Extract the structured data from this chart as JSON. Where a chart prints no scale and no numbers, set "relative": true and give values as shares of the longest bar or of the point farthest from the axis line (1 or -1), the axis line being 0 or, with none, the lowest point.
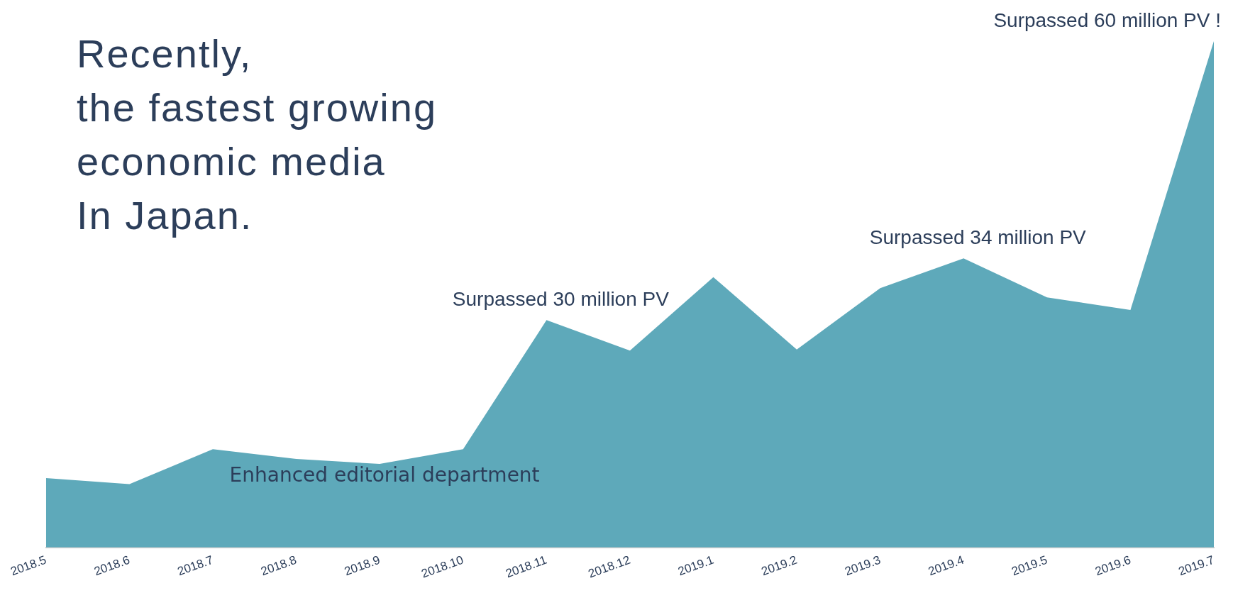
{
  "chart_data": {
    "type": "area",
    "title": "Recently,\nthe fastest growing\neconomic media\nIn Japan.",
    "relative": true,
    "categories": [
      "2018.5",
      "2018.6",
      "2018.7",
      "2018.8",
      "2018.9",
      "2018.10",
      "2018.11",
      "2018.12",
      "2019.1",
      "2019.2",
      "2019.3",
      "2019.4",
      "2019.5",
      "2019.6",
      "2019.7"
    ],
    "values": [
      0.137,
      0.125,
      0.194,
      0.175,
      0.165,
      0.194,
      0.449,
      0.389,
      0.534,
      0.391,
      0.512,
      0.571,
      0.494,
      0.469,
      1
    ],
    "color": "#5ea9ba",
    "grid": false,
    "legend": false,
    "annotations": [
      {
        "text": "Surpassed 30 million PV",
        "x": "2018.11",
        "y": 0.449
      },
      {
        "text": "Surpassed 34 million PV",
        "x": "2019.4",
        "y": 0.571
      },
      {
        "text": "Surpassed 60 million PV !",
        "x": "2019.7",
        "y": 1
      },
      "Enhanced editorial department"
    ]
  }
}
